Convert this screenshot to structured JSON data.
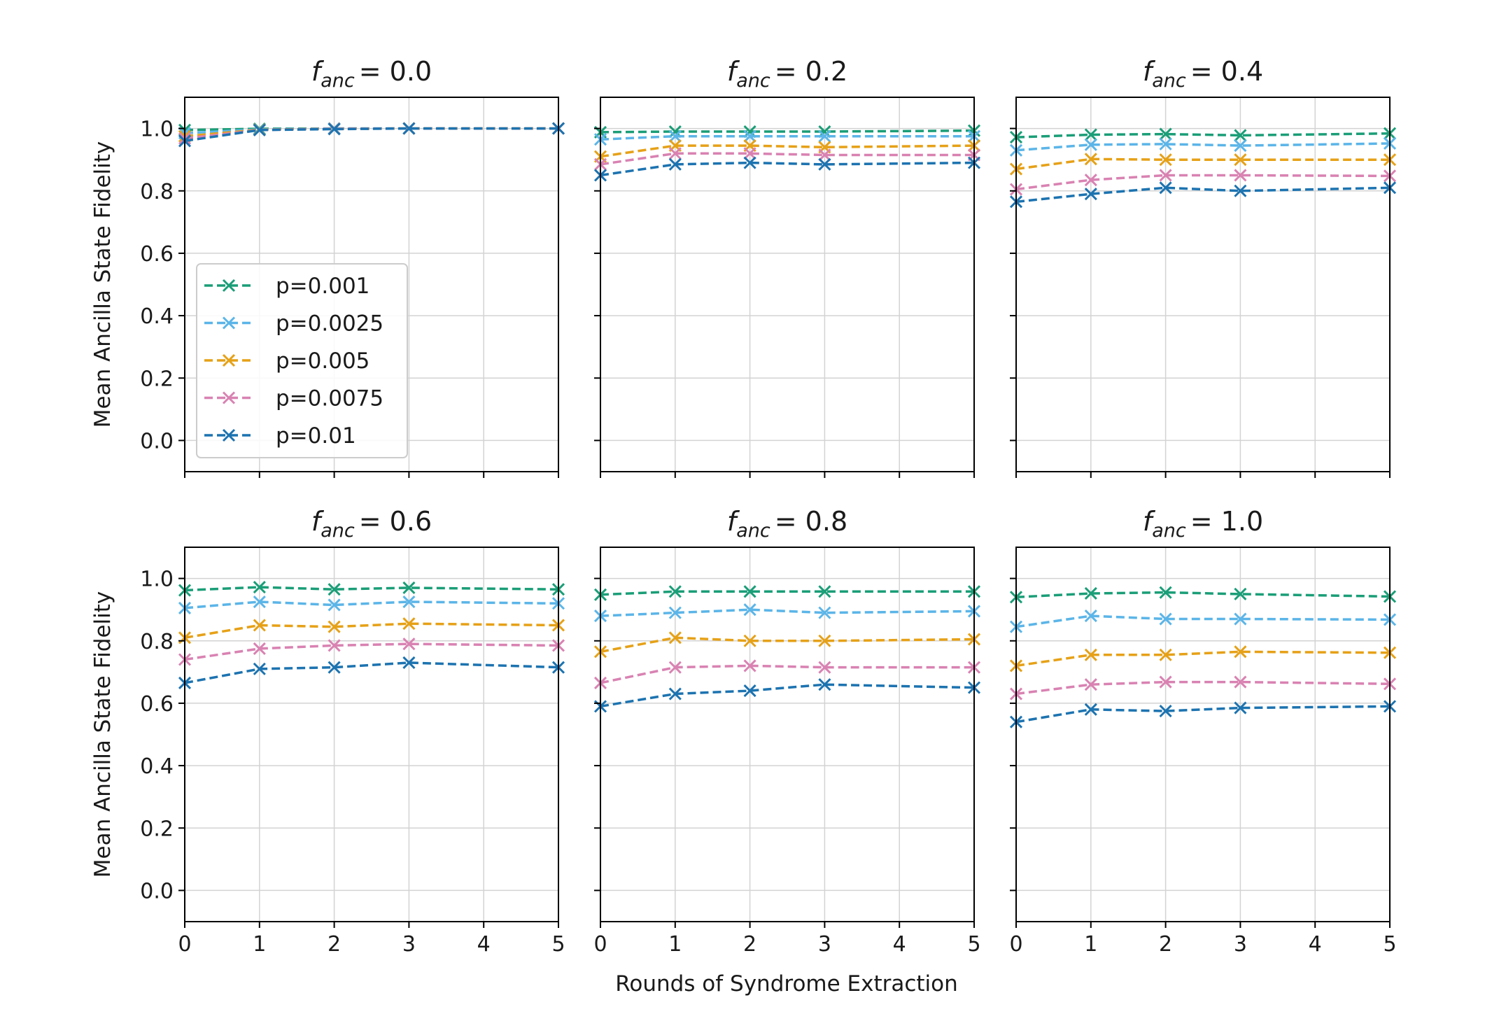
{
  "chart_data": {
    "type": "line",
    "x": [
      0,
      1,
      2,
      3,
      4,
      5
    ],
    "xlabel": "Rounds of Syndrome Extraction",
    "ylabel": "Mean Ancilla State Fidelity",
    "xlim": [
      0,
      5
    ],
    "ylim": [
      -0.1,
      1.1
    ],
    "xticks": [
      "0",
      "1",
      "2",
      "3",
      "4",
      "5"
    ],
    "yticks": [
      "0.0",
      "0.2",
      "0.4",
      "0.6",
      "0.8",
      "1.0"
    ],
    "grid": true,
    "marker": "x",
    "linestyle": "dashed",
    "legend_location": "center-left of first panel",
    "series_styles": [
      {
        "name": "p=0.001",
        "color": "#1a9e77"
      },
      {
        "name": "p=0.0025",
        "color": "#5bb5e8"
      },
      {
        "name": "p=0.005",
        "color": "#e6a117"
      },
      {
        "name": "p=0.0075",
        "color": "#d982b2"
      },
      {
        "name": "p=0.01",
        "color": "#1c73b0"
      }
    ],
    "panels": [
      {
        "title_var": "f",
        "title_sub": "anc",
        "title_value": "= 0.0",
        "series": [
          {
            "name": "p=0.001",
            "points": [
              [
                0,
                0.995
              ],
              [
                1,
                0.999
              ],
              [
                2,
                1.0
              ],
              [
                3,
                1.0
              ],
              [
                5,
                1.0
              ]
            ]
          },
          {
            "name": "p=0.0025",
            "points": [
              [
                0,
                0.985
              ],
              [
                1,
                0.997
              ],
              [
                2,
                1.0
              ],
              [
                3,
                1.0
              ],
              [
                5,
                1.0
              ]
            ]
          },
          {
            "name": "p=0.005",
            "points": [
              [
                0,
                0.975
              ],
              [
                1,
                0.996
              ],
              [
                2,
                0.999
              ],
              [
                3,
                1.0
              ],
              [
                5,
                1.0
              ]
            ]
          },
          {
            "name": "p=0.0075",
            "points": [
              [
                0,
                0.968
              ],
              [
                1,
                0.995
              ],
              [
                2,
                0.999
              ],
              [
                3,
                1.0
              ],
              [
                5,
                1.0
              ]
            ]
          },
          {
            "name": "p=0.01",
            "points": [
              [
                0,
                0.96
              ],
              [
                1,
                0.995
              ],
              [
                2,
                0.998
              ],
              [
                3,
                1.0
              ],
              [
                5,
                1.0
              ]
            ]
          }
        ]
      },
      {
        "title_var": "f",
        "title_sub": "anc",
        "title_value": "= 0.2",
        "series": [
          {
            "name": "p=0.001",
            "points": [
              [
                0,
                0.988
              ],
              [
                1,
                0.99
              ],
              [
                2,
                0.99
              ],
              [
                3,
                0.99
              ],
              [
                5,
                0.993
              ]
            ]
          },
          {
            "name": "p=0.0025",
            "points": [
              [
                0,
                0.965
              ],
              [
                1,
                0.975
              ],
              [
                2,
                0.975
              ],
              [
                3,
                0.975
              ],
              [
                5,
                0.975
              ]
            ]
          },
          {
            "name": "p=0.005",
            "points": [
              [
                0,
                0.91
              ],
              [
                1,
                0.945
              ],
              [
                2,
                0.945
              ],
              [
                3,
                0.94
              ],
              [
                5,
                0.945
              ]
            ]
          },
          {
            "name": "p=0.0075",
            "points": [
              [
                0,
                0.885
              ],
              [
                1,
                0.92
              ],
              [
                2,
                0.92
              ],
              [
                3,
                0.915
              ],
              [
                5,
                0.915
              ]
            ]
          },
          {
            "name": "p=0.01",
            "points": [
              [
                0,
                0.85
              ],
              [
                1,
                0.885
              ],
              [
                2,
                0.89
              ],
              [
                3,
                0.885
              ],
              [
                5,
                0.89
              ]
            ]
          }
        ]
      },
      {
        "title_var": "f",
        "title_sub": "anc",
        "title_value": "= 0.4",
        "series": [
          {
            "name": "p=0.001",
            "points": [
              [
                0,
                0.972
              ],
              [
                1,
                0.98
              ],
              [
                2,
                0.982
              ],
              [
                3,
                0.978
              ],
              [
                5,
                0.984
              ]
            ]
          },
          {
            "name": "p=0.0025",
            "points": [
              [
                0,
                0.93
              ],
              [
                1,
                0.948
              ],
              [
                2,
                0.95
              ],
              [
                3,
                0.945
              ],
              [
                5,
                0.952
              ]
            ]
          },
          {
            "name": "p=0.005",
            "points": [
              [
                0,
                0.87
              ],
              [
                1,
                0.902
              ],
              [
                2,
                0.9
              ],
              [
                3,
                0.9
              ],
              [
                5,
                0.9
              ]
            ]
          },
          {
            "name": "p=0.0075",
            "points": [
              [
                0,
                0.805
              ],
              [
                1,
                0.835
              ],
              [
                2,
                0.85
              ],
              [
                3,
                0.85
              ],
              [
                5,
                0.848
              ]
            ]
          },
          {
            "name": "p=0.01",
            "points": [
              [
                0,
                0.765
              ],
              [
                1,
                0.79
              ],
              [
                2,
                0.81
              ],
              [
                3,
                0.8
              ],
              [
                5,
                0.81
              ]
            ]
          }
        ]
      },
      {
        "title_var": "f",
        "title_sub": "anc",
        "title_value": "= 0.6",
        "series": [
          {
            "name": "p=0.001",
            "points": [
              [
                0,
                0.962
              ],
              [
                1,
                0.972
              ],
              [
                2,
                0.965
              ],
              [
                3,
                0.97
              ],
              [
                5,
                0.965
              ]
            ]
          },
          {
            "name": "p=0.0025",
            "points": [
              [
                0,
                0.905
              ],
              [
                1,
                0.925
              ],
              [
                2,
                0.915
              ],
              [
                3,
                0.925
              ],
              [
                5,
                0.92
              ]
            ]
          },
          {
            "name": "p=0.005",
            "points": [
              [
                0,
                0.81
              ],
              [
                1,
                0.85
              ],
              [
                2,
                0.845
              ],
              [
                3,
                0.855
              ],
              [
                5,
                0.85
              ]
            ]
          },
          {
            "name": "p=0.0075",
            "points": [
              [
                0,
                0.74
              ],
              [
                1,
                0.775
              ],
              [
                2,
                0.785
              ],
              [
                3,
                0.79
              ],
              [
                5,
                0.785
              ]
            ]
          },
          {
            "name": "p=0.01",
            "points": [
              [
                0,
                0.665
              ],
              [
                1,
                0.71
              ],
              [
                2,
                0.715
              ],
              [
                3,
                0.73
              ],
              [
                5,
                0.715
              ]
            ]
          }
        ]
      },
      {
        "title_var": "f",
        "title_sub": "anc",
        "title_value": "= 0.8",
        "series": [
          {
            "name": "p=0.001",
            "points": [
              [
                0,
                0.948
              ],
              [
                1,
                0.958
              ],
              [
                2,
                0.958
              ],
              [
                3,
                0.958
              ],
              [
                5,
                0.958
              ]
            ]
          },
          {
            "name": "p=0.0025",
            "points": [
              [
                0,
                0.88
              ],
              [
                1,
                0.89
              ],
              [
                2,
                0.9
              ],
              [
                3,
                0.89
              ],
              [
                5,
                0.895
              ]
            ]
          },
          {
            "name": "p=0.005",
            "points": [
              [
                0,
                0.765
              ],
              [
                1,
                0.81
              ],
              [
                2,
                0.8
              ],
              [
                3,
                0.8
              ],
              [
                5,
                0.805
              ]
            ]
          },
          {
            "name": "p=0.0075",
            "points": [
              [
                0,
                0.665
              ],
              [
                1,
                0.715
              ],
              [
                2,
                0.72
              ],
              [
                3,
                0.715
              ],
              [
                5,
                0.715
              ]
            ]
          },
          {
            "name": "p=0.01",
            "points": [
              [
                0,
                0.59
              ],
              [
                1,
                0.63
              ],
              [
                2,
                0.64
              ],
              [
                3,
                0.66
              ],
              [
                5,
                0.65
              ]
            ]
          }
        ]
      },
      {
        "title_var": "f",
        "title_sub": "anc",
        "title_value": "= 1.0",
        "series": [
          {
            "name": "p=0.001",
            "points": [
              [
                0,
                0.94
              ],
              [
                1,
                0.952
              ],
              [
                2,
                0.955
              ],
              [
                3,
                0.95
              ],
              [
                5,
                0.942
              ]
            ]
          },
          {
            "name": "p=0.0025",
            "points": [
              [
                0,
                0.845
              ],
              [
                1,
                0.88
              ],
              [
                2,
                0.87
              ],
              [
                3,
                0.87
              ],
              [
                5,
                0.868
              ]
            ]
          },
          {
            "name": "p=0.005",
            "points": [
              [
                0,
                0.72
              ],
              [
                1,
                0.755
              ],
              [
                2,
                0.755
              ],
              [
                3,
                0.765
              ],
              [
                5,
                0.762
              ]
            ]
          },
          {
            "name": "p=0.0075",
            "points": [
              [
                0,
                0.63
              ],
              [
                1,
                0.66
              ],
              [
                2,
                0.668
              ],
              [
                3,
                0.668
              ],
              [
                5,
                0.662
              ]
            ]
          },
          {
            "name": "p=0.01",
            "points": [
              [
                0,
                0.54
              ],
              [
                1,
                0.58
              ],
              [
                2,
                0.575
              ],
              [
                3,
                0.585
              ],
              [
                5,
                0.59
              ]
            ]
          }
        ]
      }
    ]
  }
}
